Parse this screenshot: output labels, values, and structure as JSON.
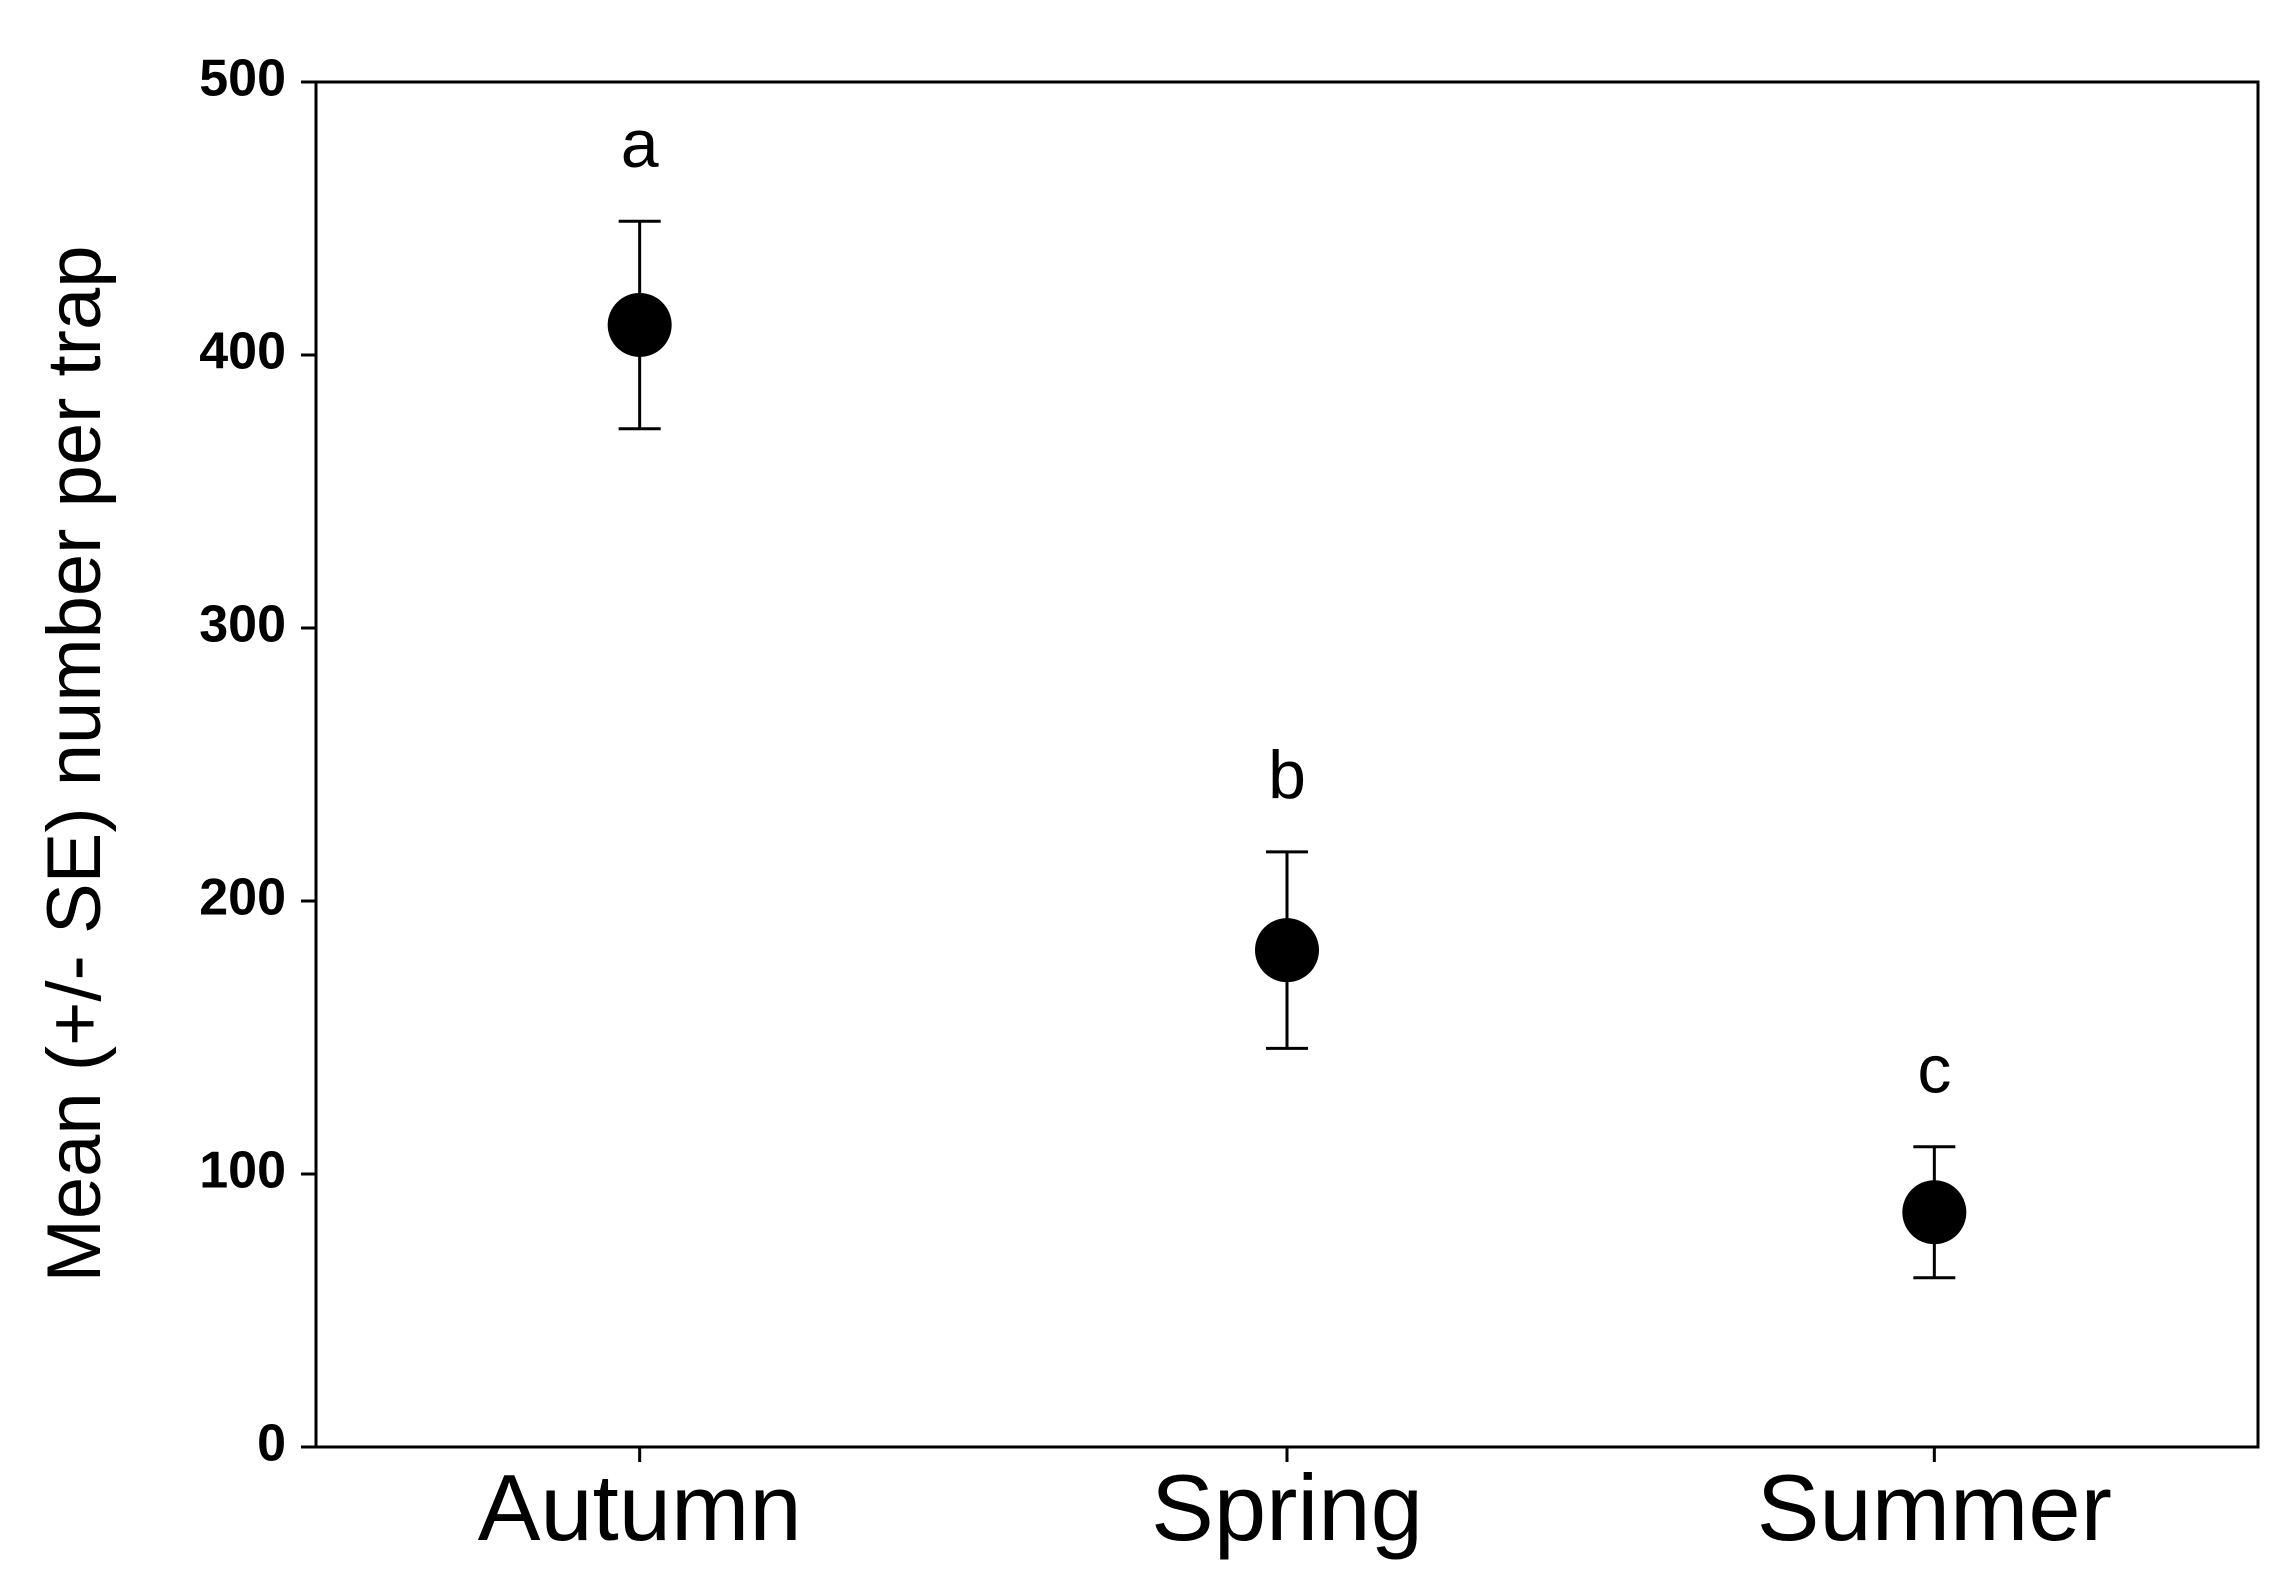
{
  "chart_data": {
    "type": "errorpoint",
    "y_label": "Mean (+/- SE) number per trap",
    "categories": [
      "Autumn",
      "Spring",
      "Summer"
    ],
    "values": [
      411,
      182,
      86
    ],
    "errors": [
      38,
      36,
      24
    ],
    "annotations": [
      "a",
      "b",
      "c"
    ],
    "color": "#000000",
    "ylim": [
      0,
      500
    ],
    "yticks": [
      0,
      100,
      200,
      300,
      400,
      500
    ],
    "grid": false
  }
}
